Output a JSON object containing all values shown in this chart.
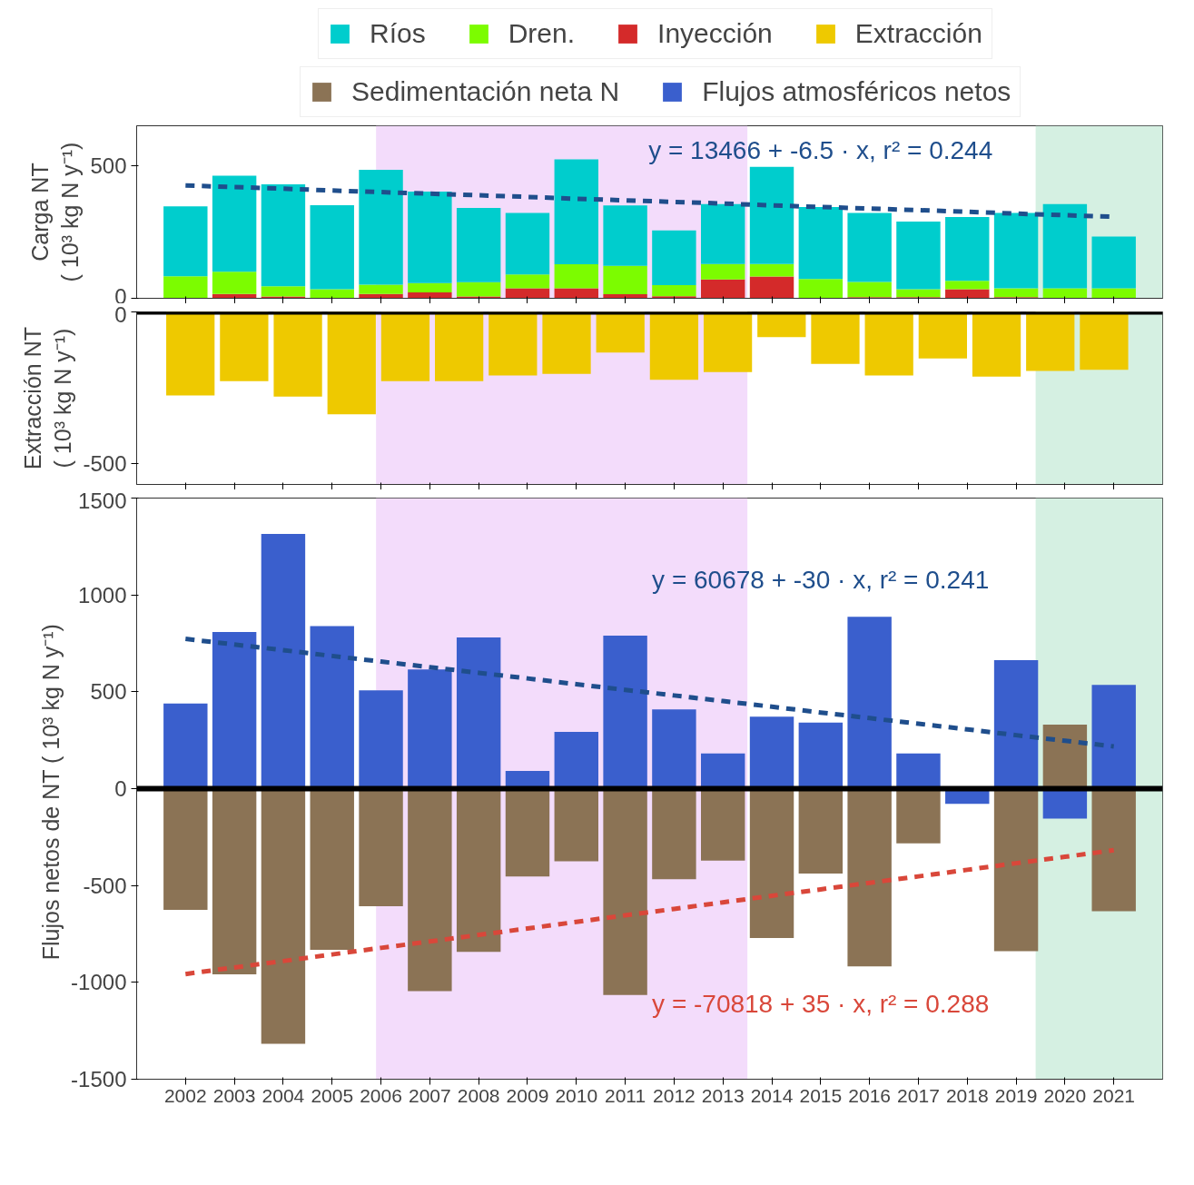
{
  "chart_data": [
    {
      "type": "bar",
      "stacked": true,
      "ylabel": "Carga NT\n( 10³ kg N y⁻¹)",
      "legend": "top",
      "tick_labels": "y",
      "x": [
        2002,
        2003,
        2004,
        2005,
        2006,
        2007,
        2008,
        2009,
        2010,
        2011,
        2012,
        2013,
        2014,
        2015,
        2016,
        2017,
        2018,
        2019,
        2020,
        2021
      ],
      "xlim": [
        2001,
        2022
      ],
      "xticks": [
        2002,
        2003,
        2004,
        2005,
        2006,
        2007,
        2008,
        2009,
        2010,
        2011,
        2012,
        2013,
        2014,
        2015,
        2016,
        2017,
        2018,
        2019,
        2020,
        2021
      ],
      "ylim": [
        0,
        650
      ],
      "yticks": [
        0,
        500
      ],
      "series": [
        {
          "name": "Inyección",
          "color": "#d42a2a",
          "values": [
            0,
            16,
            7,
            0,
            16,
            22,
            7,
            38,
            38,
            15,
            8,
            71,
            82,
            0,
            4,
            4,
            34,
            4,
            0,
            0
          ]
        },
        {
          "name": "Dren.",
          "color": "#7cfc00",
          "values": [
            83,
            84,
            38,
            34,
            35,
            35,
            54,
            52,
            90,
            107,
            42,
            58,
            47,
            73,
            58,
            30,
            32,
            34,
            38,
            38
          ]
        },
        {
          "name": "Ríos",
          "color": "#00cdcd",
          "values": [
            263,
            362,
            384,
            317,
            433,
            345,
            279,
            232,
            395,
            228,
            206,
            226,
            366,
            271,
            260,
            255,
            240,
            284,
            317,
            195
          ]
        },
        {
          "type": "line",
          "color": "#1f4e8c",
          "line_style": "dashed",
          "values": [
            425,
            419,
            413,
            406,
            400,
            394,
            388,
            382,
            375,
            369,
            363,
            357,
            350,
            344,
            338,
            332,
            326,
            319,
            313,
            307
          ]
        }
      ],
      "bands": [
        {
          "axis": "x",
          "from": 2005.9,
          "to": 2013.5,
          "color": "#f3dcfb"
        },
        {
          "axis": "x",
          "from": 2019.4,
          "to": 2022,
          "color": "#d5f0e2"
        }
      ],
      "annotations": [
        "y = 13466 + -6.5 · x,  r² = 0.244"
      ]
    },
    {
      "type": "bar",
      "ylabel": "Extracción NT\n( 10³ kg N y⁻¹)",
      "legend": "top",
      "tick_labels": "y",
      "x": [
        2002.1,
        2003.2,
        2004.3,
        2005.4,
        2006.5,
        2007.6,
        2008.7,
        2009.8,
        2010.9,
        2012.0,
        2013.1,
        2014.2,
        2015.3,
        2016.4,
        2017.5,
        2018.6,
        2019.7,
        2020.8
      ],
      "xlim": [
        2001,
        2022
      ],
      "xticks": [
        2002,
        2003,
        2004,
        2005,
        2006,
        2007,
        2008,
        2009,
        2010,
        2011,
        2012,
        2013,
        2014,
        2015,
        2016,
        2017,
        2018,
        2019,
        2020,
        2021
      ],
      "ylim": [
        -570,
        0
      ],
      "yticks": [
        -500,
        0
      ],
      "series": [
        {
          "name": "Extracción",
          "color": "#eec900",
          "values": [
            -276,
            -229,
            -280,
            -338,
            -229,
            -229,
            -210,
            -205,
            -134,
            -224,
            -199,
            -83,
            -172,
            -210,
            -154,
            -214,
            -195,
            -191
          ]
        }
      ],
      "ref_lines": [
        {
          "axis": "y",
          "value": 0,
          "color": "#000000"
        }
      ],
      "bands": [
        {
          "axis": "x",
          "from": 2005.9,
          "to": 2013.5,
          "color": "#f3dcfb"
        },
        {
          "axis": "x",
          "from": 2019.4,
          "to": 2022,
          "color": "#d5f0e2"
        }
      ]
    },
    {
      "type": "bar",
      "stacked": true,
      "legend": "top",
      "ylabel": "Flujos netos de NT  ( 10³ kg N y⁻¹)",
      "x": [
        2002,
        2003,
        2004,
        2005,
        2006,
        2007,
        2008,
        2009,
        2010,
        2011,
        2012,
        2013,
        2014,
        2015,
        2016,
        2017,
        2018,
        2019,
        2020,
        2021
      ],
      "xlim": [
        2001,
        2022
      ],
      "xticks": [
        2002,
        2003,
        2004,
        2005,
        2006,
        2007,
        2008,
        2009,
        2010,
        2011,
        2012,
        2013,
        2014,
        2015,
        2016,
        2017,
        2018,
        2019,
        2020,
        2021
      ],
      "ylim": [
        -1500,
        1500
      ],
      "yticks": [
        -1500,
        -1000,
        -500,
        0,
        500,
        1000,
        1500
      ],
      "series": [
        {
          "name": "Sedimentación neta N",
          "color": "#8b7355",
          "values": [
            -626,
            -959,
            -1317,
            -832,
            -607,
            -1045,
            -843,
            -453,
            -375,
            -1065,
            -468,
            -371,
            -771,
            -438,
            -917,
            -282,
            null,
            -839,
            330,
            -633
          ]
        },
        {
          "name": "Flujos atmosféricos netos",
          "color": "#3a5fcd",
          "values": [
            440,
            809,
            1315,
            839,
            508,
            615,
            780,
            91,
            293,
            790,
            409,
            182,
            371,
            341,
            887,
            182,
            -78,
            663,
            -155,
            536
          ]
        },
        {
          "type": "line",
          "color": "#1f4e8c",
          "line_style": "dashed",
          "values": [
            773,
            744,
            715,
            685,
            656,
            627,
            598,
            569,
            539,
            510,
            481,
            452,
            423,
            393,
            364,
            335,
            306,
            276,
            247,
            218
          ]
        },
        {
          "type": "line",
          "color": "#d9473a",
          "line_style": "dashed",
          "values": [
            -957,
            -923,
            -890,
            -856,
            -822,
            -789,
            -755,
            -722,
            -688,
            -654,
            -621,
            -587,
            -553,
            -520,
            -486,
            -453,
            -419,
            -385,
            -352,
            -318
          ]
        }
      ],
      "ref_lines": [
        {
          "axis": "y",
          "value": 0,
          "color": "#000000"
        }
      ],
      "bands": [
        {
          "axis": "x",
          "from": 2005.9,
          "to": 2013.5,
          "color": "#f3dcfb"
        },
        {
          "axis": "x",
          "from": 2019.4,
          "to": 2022,
          "color": "#d5f0e2"
        }
      ],
      "annotations": [
        "y = 60678 + -30 · x,  r² = 0.241",
        "y = -70818 + 35 · x,  r² = 0.288"
      ]
    }
  ]
}
